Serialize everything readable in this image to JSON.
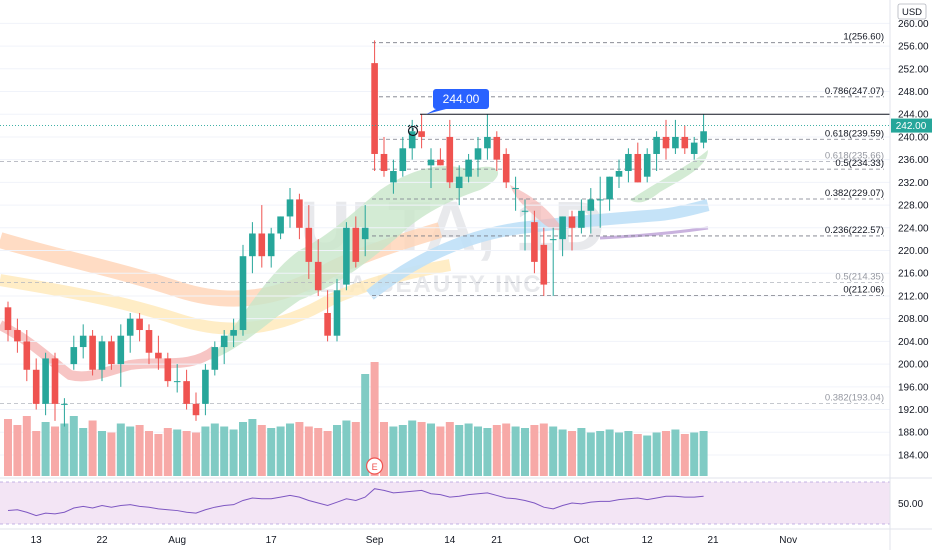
{
  "watermark": {
    "symbol": "ULTA, 1D",
    "company": "ULTA BEAUTY INC"
  },
  "currency": "USD",
  "price_badge": "242.00",
  "callout_label": "244.00",
  "earnings_marker": "E",
  "rsi_label": "50.00",
  "colors": {
    "up": "#26a69a",
    "down": "#ef5350",
    "vol_up": "#80cbc4",
    "vol_down": "#f7a9a7",
    "callout": "#2962ff",
    "rsi_line": "#7e57c2",
    "rsi_fill": "#f3e5f5"
  },
  "chart_data": {
    "type": "candlestick",
    "y_axis": {
      "ticks": [
        "184.00",
        "188.00",
        "192.00",
        "196.00",
        "200.00",
        "204.00",
        "208.00",
        "212.00",
        "216.00",
        "220.00",
        "224.00",
        "228.00",
        "232.00",
        "236.00",
        "240.00",
        "244.00",
        "248.00",
        "252.00",
        "256.00",
        "260.00"
      ],
      "range": [
        181,
        262
      ]
    },
    "x_axis": {
      "ticks": [
        {
          "label": "13",
          "bar": 3
        },
        {
          "label": "22",
          "bar": 10
        },
        {
          "label": "Aug",
          "bar": 18
        },
        {
          "label": "17",
          "bar": 28
        },
        {
          "label": "Sep",
          "bar": 39
        },
        {
          "label": "14",
          "bar": 47
        },
        {
          "label": "21",
          "bar": 52
        },
        {
          "label": "Oct",
          "bar": 61
        },
        {
          "label": "12",
          "bar": 68
        },
        {
          "label": "21",
          "bar": 75
        },
        {
          "label": "Nov",
          "bar": 83
        }
      ]
    },
    "fibonacci": [
      {
        "label": "1(256.60)",
        "value": 256.6,
        "faded": false
      },
      {
        "label": "0.786(247.07)",
        "value": 247.07,
        "faded": false
      },
      {
        "label": "0.618(239.59)",
        "value": 239.59,
        "faded": false
      },
      {
        "label": "0.618(235.66)",
        "value": 235.66,
        "faded": true
      },
      {
        "label": "0.5(234.33)",
        "value": 234.33,
        "faded": false
      },
      {
        "label": "0.382(229.07)",
        "value": 229.07,
        "faded": false
      },
      {
        "label": "0.236(222.57)",
        "value": 222.57,
        "faded": false
      },
      {
        "label": "0.5(214.35)",
        "value": 214.35,
        "faded": true
      },
      {
        "label": "0(212.06)",
        "value": 212.06,
        "faded": false
      },
      {
        "label": "0.382(193.04)",
        "value": 193.04,
        "faded": true
      }
    ],
    "resistance": 244.0,
    "candles": [
      {
        "o": 210,
        "h": 211,
        "l": 204,
        "c": 206
      },
      {
        "o": 206,
        "h": 208,
        "l": 202,
        "c": 204
      },
      {
        "o": 204,
        "h": 206,
        "l": 197,
        "c": 199
      },
      {
        "o": 199,
        "h": 201,
        "l": 192,
        "c": 193
      },
      {
        "o": 193,
        "h": 202,
        "l": 191,
        "c": 201
      },
      {
        "o": 201,
        "h": 202,
        "l": 190,
        "c": 193
      },
      {
        "o": 193,
        "h": 194,
        "l": 189,
        "c": 193
      },
      {
        "o": 200,
        "h": 205,
        "l": 199,
        "c": 203
      },
      {
        "o": 203,
        "h": 207,
        "l": 201,
        "c": 205
      },
      {
        "o": 205,
        "h": 206,
        "l": 198,
        "c": 199
      },
      {
        "o": 199,
        "h": 205,
        "l": 197,
        "c": 204
      },
      {
        "o": 204,
        "h": 205,
        "l": 199,
        "c": 200
      },
      {
        "o": 200,
        "h": 207,
        "l": 196,
        "c": 205
      },
      {
        "o": 205,
        "h": 209,
        "l": 202,
        "c": 208
      },
      {
        "o": 208,
        "h": 209,
        "l": 204,
        "c": 206
      },
      {
        "o": 206,
        "h": 207,
        "l": 200,
        "c": 202
      },
      {
        "o": 202,
        "h": 205,
        "l": 199,
        "c": 201
      },
      {
        "o": 201,
        "h": 202,
        "l": 196,
        "c": 197
      },
      {
        "o": 197,
        "h": 200,
        "l": 195,
        "c": 197
      },
      {
        "o": 197,
        "h": 199,
        "l": 192,
        "c": 193
      },
      {
        "o": 193,
        "h": 195,
        "l": 190,
        "c": 191
      },
      {
        "o": 193,
        "h": 200,
        "l": 191,
        "c": 199
      },
      {
        "o": 199,
        "h": 204,
        "l": 198,
        "c": 203
      },
      {
        "o": 203,
        "h": 206,
        "l": 200,
        "c": 205
      },
      {
        "o": 205,
        "h": 208,
        "l": 203,
        "c": 206
      },
      {
        "o": 206,
        "h": 221,
        "l": 205,
        "c": 219
      },
      {
        "o": 219,
        "h": 225,
        "l": 216,
        "c": 223
      },
      {
        "o": 223,
        "h": 228,
        "l": 217,
        "c": 219
      },
      {
        "o": 219,
        "h": 224,
        "l": 217,
        "c": 223
      },
      {
        "o": 223,
        "h": 226,
        "l": 222,
        "c": 226
      },
      {
        "o": 226,
        "h": 231,
        "l": 224,
        "c": 229
      },
      {
        "o": 229,
        "h": 230,
        "l": 222,
        "c": 224
      },
      {
        "o": 224,
        "h": 228,
        "l": 215,
        "c": 218
      },
      {
        "o": 218,
        "h": 222,
        "l": 212,
        "c": 213
      },
      {
        "o": 209,
        "h": 213,
        "l": 204,
        "c": 205
      },
      {
        "o": 205,
        "h": 215,
        "l": 204,
        "c": 213
      },
      {
        "o": 214,
        "h": 225,
        "l": 213,
        "c": 224
      },
      {
        "o": 224,
        "h": 226,
        "l": 217,
        "c": 218
      },
      {
        "o": 222,
        "h": 228,
        "l": 219,
        "c": 224
      },
      {
        "o": 253,
        "h": 257,
        "l": 234,
        "c": 237
      },
      {
        "o": 237,
        "h": 240,
        "l": 233,
        "c": 234
      },
      {
        "o": 232,
        "h": 236,
        "l": 230,
        "c": 234
      },
      {
        "o": 234,
        "h": 240,
        "l": 233,
        "c": 238
      },
      {
        "o": 238,
        "h": 243,
        "l": 236,
        "c": 241
      },
      {
        "o": 241,
        "h": 244,
        "l": 238,
        "c": 240
      },
      {
        "o": 235,
        "h": 238,
        "l": 231,
        "c": 236
      },
      {
        "o": 236,
        "h": 238,
        "l": 235,
        "c": 235
      },
      {
        "o": 240,
        "h": 243,
        "l": 231,
        "c": 232
      },
      {
        "o": 231,
        "h": 235,
        "l": 228,
        "c": 233
      },
      {
        "o": 233,
        "h": 237,
        "l": 232,
        "c": 236
      },
      {
        "o": 236,
        "h": 240,
        "l": 233,
        "c": 238
      },
      {
        "o": 238,
        "h": 244,
        "l": 236,
        "c": 240
      },
      {
        "o": 240,
        "h": 241,
        "l": 234,
        "c": 236
      },
      {
        "o": 237,
        "h": 238,
        "l": 231,
        "c": 232
      },
      {
        "o": 231,
        "h": 233,
        "l": 227,
        "c": 231
      },
      {
        "o": 227,
        "h": 229,
        "l": 220,
        "c": 227
      },
      {
        "o": 225,
        "h": 227,
        "l": 216,
        "c": 218
      },
      {
        "o": 221,
        "h": 224,
        "l": 212,
        "c": 214
      },
      {
        "o": 222,
        "h": 224,
        "l": 212,
        "c": 222
      },
      {
        "o": 222,
        "h": 226,
        "l": 219,
        "c": 226
      },
      {
        "o": 226,
        "h": 227,
        "l": 220,
        "c": 224
      },
      {
        "o": 224,
        "h": 229,
        "l": 223,
        "c": 227
      },
      {
        "o": 227,
        "h": 231,
        "l": 223,
        "c": 229
      },
      {
        "o": 229,
        "h": 233,
        "l": 224,
        "c": 229
      },
      {
        "o": 229,
        "h": 233,
        "l": 227,
        "c": 233
      },
      {
        "o": 233,
        "h": 236,
        "l": 231,
        "c": 234
      },
      {
        "o": 234,
        "h": 238,
        "l": 232,
        "c": 237
      },
      {
        "o": 237,
        "h": 239,
        "l": 232,
        "c": 232
      },
      {
        "o": 233,
        "h": 238,
        "l": 232,
        "c": 237
      },
      {
        "o": 237,
        "h": 241,
        "l": 234,
        "c": 240
      },
      {
        "o": 240,
        "h": 243,
        "l": 236,
        "c": 238
      },
      {
        "o": 238,
        "h": 243,
        "l": 237,
        "c": 240
      },
      {
        "o": 240,
        "h": 242,
        "l": 237,
        "c": 238
      },
      {
        "o": 237,
        "h": 240,
        "l": 236,
        "c": 239
      },
      {
        "o": 239,
        "h": 244,
        "l": 238,
        "c": 241
      }
    ],
    "volume": [
      38,
      34,
      40,
      30,
      36,
      33,
      35,
      40,
      32,
      37,
      30,
      29,
      35,
      33,
      34,
      30,
      28,
      32,
      31,
      30,
      29,
      33,
      35,
      33,
      31,
      36,
      38,
      34,
      32,
      33,
      35,
      36,
      33,
      32,
      30,
      34,
      37,
      36,
      68,
      76,
      36,
      33,
      34,
      37,
      36,
      35,
      33,
      36,
      34,
      35,
      33,
      32,
      34,
      35,
      33,
      32,
      34,
      35,
      33,
      31,
      30,
      32,
      29,
      30,
      31,
      29,
      30,
      28,
      27,
      29,
      30,
      31,
      28,
      29,
      30
    ],
    "rsi": [
      46,
      47,
      44,
      40,
      43,
      42,
      44,
      49,
      51,
      49,
      52,
      50,
      52,
      53,
      51,
      50,
      48,
      47,
      46,
      44,
      43,
      47,
      50,
      52,
      53,
      58,
      61,
      60,
      60,
      62,
      64,
      62,
      58,
      55,
      52,
      56,
      60,
      58,
      62,
      72,
      70,
      67,
      68,
      69,
      70,
      66,
      65,
      62,
      63,
      65,
      66,
      67,
      64,
      61,
      60,
      58,
      55,
      50,
      48,
      52,
      55,
      54,
      56,
      57,
      57,
      59,
      60,
      61,
      59,
      61,
      63,
      63,
      62,
      62,
      63
    ]
  }
}
